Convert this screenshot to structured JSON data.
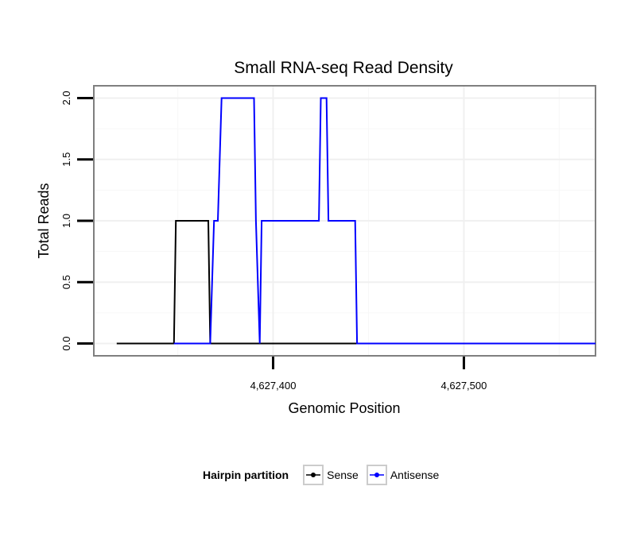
{
  "chart_data": {
    "type": "line",
    "title": "Small RNA-seq Read Density",
    "xlabel": "Genomic Position",
    "ylabel": "Total Reads",
    "xlim": [
      4627306,
      4627569
    ],
    "ylim": [
      -0.1,
      2.1
    ],
    "xticks": [
      4627400,
      4627500
    ],
    "xtick_labels": [
      "4,627,400",
      "4,627,500"
    ],
    "yticks": [
      0,
      0.5,
      1,
      1.5,
      2
    ],
    "ytick_labels": [
      "0.0",
      "0.5",
      "1.0",
      "1.5",
      "2.0"
    ],
    "grid": true,
    "legend_position": "bottom",
    "legend_title": "Hairpin partition",
    "series": [
      {
        "name": "Sense",
        "color": "#000000",
        "x": [
          4627318,
          4627348,
          4627349,
          4627366,
          4627367,
          4627569
        ],
        "y": [
          0,
          0,
          1,
          1,
          0,
          0
        ]
      },
      {
        "name": "Antisense",
        "color": "#0000ff",
        "x": [
          4627348,
          4627367,
          4627369,
          4627371,
          4627373,
          4627390,
          4627391,
          4627393,
          4627394,
          4627406,
          4627424,
          4627425,
          4627428,
          4627429,
          4627443,
          4627444,
          4627569
        ],
        "y": [
          0,
          0,
          1,
          1,
          2,
          2,
          1,
          0,
          1,
          1,
          1,
          2,
          2,
          1,
          1,
          0,
          0
        ]
      }
    ]
  }
}
